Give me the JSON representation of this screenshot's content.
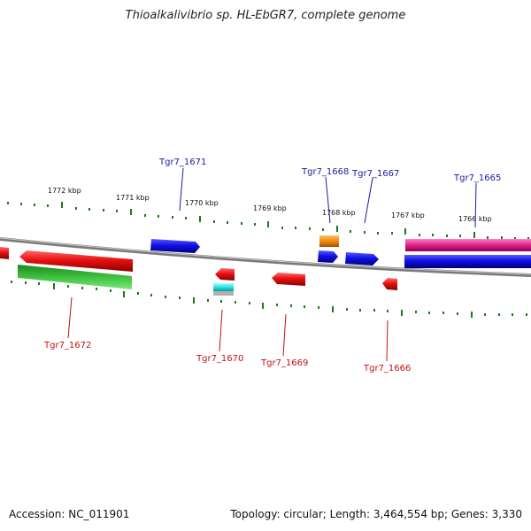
{
  "title": "Thioalkalivibrio sp. HL-EbGR7, complete genome",
  "footer": {
    "accession": "Accession: NC_011901",
    "topology": "Topology: circular; Length: 3,464,554 bp; Genes: 3,330"
  },
  "kbp_labels": [
    "1772 kbp",
    "1771 kbp",
    "1770 kbp",
    "1769 kbp",
    "1768 kbp",
    "1767 kbp",
    "1766 kbp"
  ],
  "gene_labels": {
    "tgr7_1671": "Tgr7_1671",
    "tgr7_1668": "Tgr7_1668",
    "tgr7_1667": "Tgr7_1667",
    "tgr7_1665": "Tgr7_1665",
    "tgr7_1672": "Tgr7_1672",
    "tgr7_1670": "Tgr7_1670",
    "tgr7_1669": "Tgr7_1669",
    "tgr7_1666": "Tgr7_1666"
  },
  "colors": {
    "forward_gene": "#1010e0",
    "reverse_gene": "#e01010",
    "rna": "#1aa01a",
    "orange": "#f08c10",
    "magenta": "#e0208c",
    "cyan": "#20e0e0",
    "tick": "#1a7a1a",
    "backbone": "#7a7a7a",
    "forward_label": "#1a1aa0",
    "reverse_label": "#c01010"
  }
}
